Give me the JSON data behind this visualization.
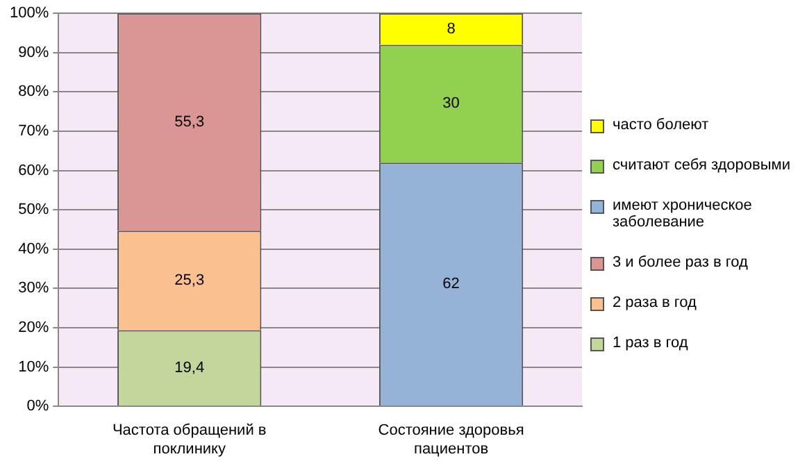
{
  "chart_data": {
    "type": "bar",
    "stacked": true,
    "categories": [
      "Частота обращений в поклинику",
      "Состояние здоровья пациентов"
    ],
    "series": [
      {
        "name": "1 раз в год",
        "color": "#c3d69b",
        "values": [
          19.4,
          null
        ],
        "value_labels": [
          "19,4",
          null
        ]
      },
      {
        "name": "2 раза в год",
        "color": "#fac090",
        "values": [
          25.3,
          null
        ],
        "value_labels": [
          "25,3",
          null
        ]
      },
      {
        "name": "3 и более раз в год",
        "color": "#d99694",
        "values": [
          55.3,
          null
        ],
        "value_labels": [
          "55,3",
          null
        ]
      },
      {
        "name": "имеют хроническое заболевание",
        "color": "#95b3d7",
        "values": [
          null,
          62
        ],
        "value_labels": [
          null,
          "62"
        ]
      },
      {
        "name": "считают себя здоровыми",
        "color": "#92d050",
        "values": [
          null,
          30
        ],
        "value_labels": [
          null,
          "30"
        ]
      },
      {
        "name": "часто болеют",
        "color": "#ffff00",
        "values": [
          null,
          8
        ],
        "value_labels": [
          null,
          "8"
        ]
      }
    ],
    "ylim": [
      0,
      100
    ],
    "yticks": [
      {
        "value": 0,
        "label": "0%"
      },
      {
        "value": 10,
        "label": "10%"
      },
      {
        "value": 20,
        "label": "20%"
      },
      {
        "value": 30,
        "label": "30%"
      },
      {
        "value": 40,
        "label": "40%"
      },
      {
        "value": 50,
        "label": "50%"
      },
      {
        "value": 60,
        "label": "60%"
      },
      {
        "value": 70,
        "label": "70%"
      },
      {
        "value": 80,
        "label": "80%"
      },
      {
        "value": 90,
        "label": "90%"
      },
      {
        "value": 100,
        "label": "100%"
      }
    ],
    "grid": "y",
    "legend": "right"
  }
}
